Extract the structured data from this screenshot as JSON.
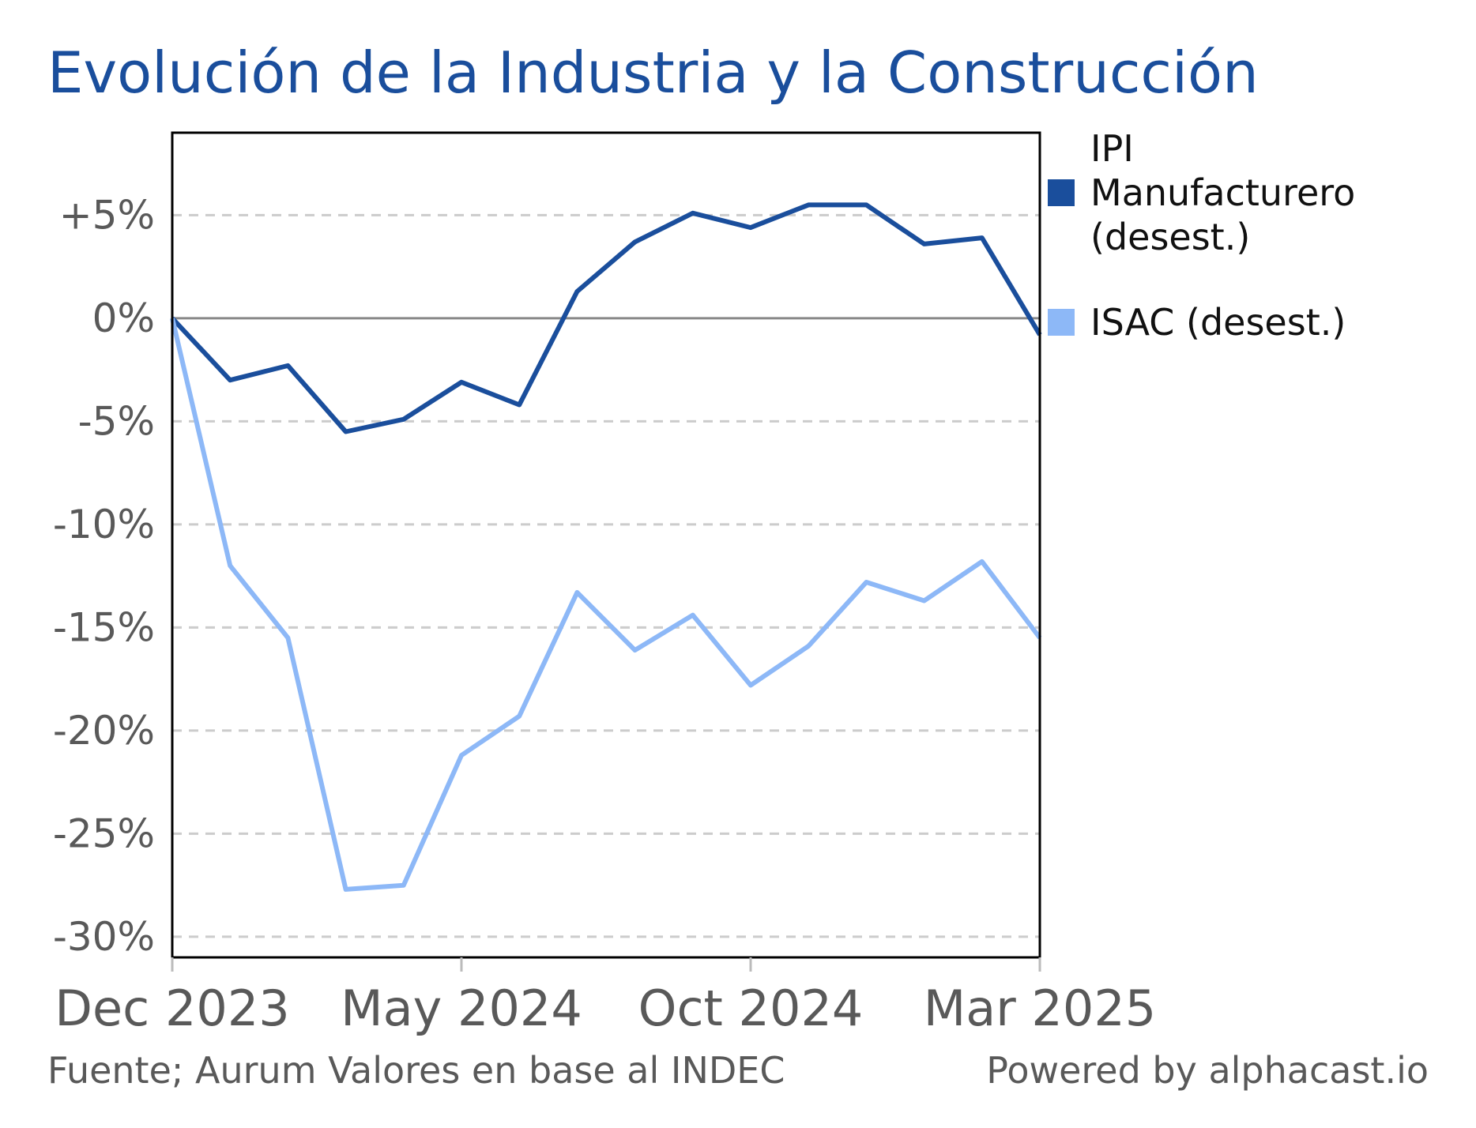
{
  "title": "Evolución de la Industria y la Construcción",
  "source": "Fuente; Aurum Valores en base al INDEC",
  "credit": "Powered by alphacast.io",
  "colors": {
    "ipi": "#1a4e9c",
    "isac": "#8db8f7",
    "grid": "#cccccc",
    "axis": "#000000",
    "tick_text": "#595959"
  },
  "chart_data": {
    "type": "line",
    "title": "Evolución de la Industria y la Construcción",
    "xlabel": "",
    "ylabel": "",
    "x": [
      "Dec 2023",
      "Jan 2024",
      "Feb 2024",
      "Mar 2024",
      "Apr 2024",
      "May 2024",
      "Jun 2024",
      "Jul 2024",
      "Aug 2024",
      "Sep 2024",
      "Oct 2024",
      "Nov 2024",
      "Dec 2024",
      "Jan 2025",
      "Feb 2025",
      "Mar 2025"
    ],
    "x_ticks": [
      "Dec 2023",
      "May 2024",
      "Oct 2024",
      "Mar 2025"
    ],
    "ylim": [
      -31,
      9
    ],
    "y_ticks": [
      5,
      0,
      -5,
      -10,
      -15,
      -20,
      -25,
      -30
    ],
    "y_tick_labels": [
      "+5%",
      "0%",
      "-5%",
      "-10%",
      "-15%",
      "-20%",
      "-25%",
      "-30%"
    ],
    "grid": true,
    "legend_position": "right",
    "series": [
      {
        "name": "IPI Manufacturero (desest.)",
        "color": "#1a4e9c",
        "values": [
          0,
          -3.0,
          -2.3,
          -5.5,
          -4.9,
          -3.1,
          -4.2,
          1.3,
          3.7,
          5.1,
          4.4,
          5.5,
          5.5,
          3.6,
          3.9,
          -0.8
        ]
      },
      {
        "name": "ISAC (desest.)",
        "color": "#8db8f7",
        "values": [
          0,
          -12.0,
          -15.5,
          -27.7,
          -27.5,
          -21.2,
          -19.3,
          -13.3,
          -16.1,
          -14.4,
          -17.8,
          -15.9,
          -12.8,
          -13.7,
          -11.8,
          -15.5
        ]
      }
    ]
  }
}
